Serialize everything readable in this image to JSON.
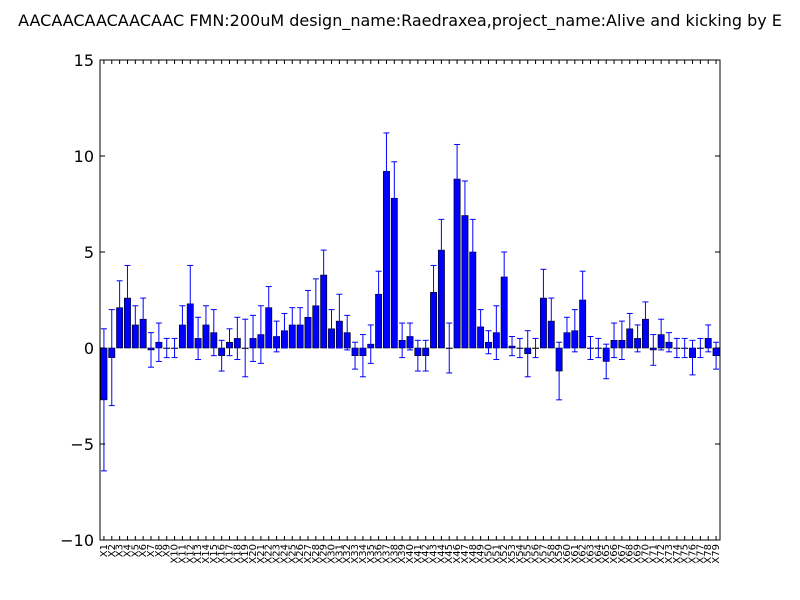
{
  "chart_data": {
    "type": "bar",
    "title": "AACAACAACAACAAC  FMN:200uM  design_name:Raedraxea,project_name:Alive and kicking by E",
    "xlabel": "",
    "ylabel": "",
    "ylim": [
      -10,
      15
    ],
    "yticks": [
      "−10",
      "−5",
      "0",
      "5",
      "10",
      "15"
    ],
    "ytick_values": [
      -10,
      -5,
      0,
      5,
      10,
      15
    ],
    "grid": false,
    "bar_color": "#0000ff",
    "error_color": "#0000ff",
    "categories": [
      "X1",
      "X2",
      "X3",
      "X4",
      "X5",
      "X6",
      "X7",
      "X8",
      "X9",
      "X10",
      "X11",
      "X12",
      "X13",
      "X14",
      "X15",
      "X16",
      "X17",
      "X18",
      "X19",
      "X20",
      "X21",
      "X22",
      "X23",
      "X24",
      "X25",
      "X26",
      "X27",
      "X28",
      "X29",
      "X30",
      "X31",
      "X32",
      "X33",
      "X34",
      "X35",
      "X36",
      "X37",
      "X38",
      "X39",
      "X40",
      "X41",
      "X42",
      "X43",
      "X44",
      "X45",
      "X46",
      "X47",
      "X48",
      "X49",
      "X50",
      "X51",
      "X52",
      "X53",
      "X54",
      "X55",
      "X56",
      "X57",
      "X58",
      "X59",
      "X60",
      "X61",
      "X62",
      "X63",
      "X64",
      "X65",
      "X66",
      "X67",
      "X68",
      "X69",
      "X70",
      "X71",
      "X72",
      "X73",
      "X74",
      "X75",
      "X76",
      "X77",
      "X78",
      "X79"
    ],
    "values": [
      -2.7,
      -0.5,
      2.1,
      2.6,
      1.2,
      1.5,
      -0.1,
      0.3,
      0.0,
      0.0,
      1.2,
      2.3,
      0.5,
      1.2,
      0.8,
      -0.4,
      0.3,
      0.5,
      0.0,
      0.5,
      0.7,
      2.1,
      0.6,
      0.9,
      1.2,
      1.2,
      1.6,
      2.2,
      3.8,
      1.0,
      1.4,
      0.8,
      -0.4,
      -0.4,
      0.2,
      2.8,
      9.2,
      7.8,
      0.4,
      0.6,
      -0.4,
      -0.4,
      2.9,
      5.1,
      0.0,
      8.8,
      6.9,
      5.0,
      1.1,
      0.3,
      0.8,
      3.7,
      0.1,
      0.0,
      -0.3,
      0.0,
      2.6,
      1.4,
      -1.2,
      0.8,
      0.9,
      2.5,
      0.0,
      0.0,
      -0.7,
      0.4,
      0.4,
      1.0,
      0.5,
      1.5,
      -0.1,
      0.7,
      0.3,
      0.0,
      0.0,
      -0.5,
      0.0,
      0.5,
      -0.4
    ],
    "errors": [
      3.7,
      2.5,
      1.4,
      1.7,
      1.0,
      1.1,
      0.9,
      1.0,
      0.5,
      0.5,
      1.0,
      2.0,
      1.1,
      1.0,
      1.2,
      0.8,
      0.7,
      1.1,
      1.5,
      1.2,
      1.5,
      1.1,
      0.8,
      0.9,
      0.9,
      0.9,
      1.4,
      1.4,
      1.3,
      1.0,
      1.4,
      0.9,
      0.7,
      1.1,
      1.0,
      1.2,
      2.0,
      1.9,
      0.9,
      0.7,
      0.8,
      0.8,
      1.4,
      1.6,
      1.3,
      1.8,
      1.8,
      1.7,
      0.9,
      0.6,
      1.4,
      1.3,
      0.5,
      0.5,
      1.2,
      0.5,
      1.5,
      1.2,
      1.5,
      0.8,
      1.1,
      1.5,
      0.6,
      0.5,
      0.9,
      0.9,
      1.0,
      0.8,
      0.7,
      0.9,
      0.8,
      0.8,
      0.5,
      0.5,
      0.5,
      0.9,
      0.5,
      0.7,
      0.7
    ]
  }
}
